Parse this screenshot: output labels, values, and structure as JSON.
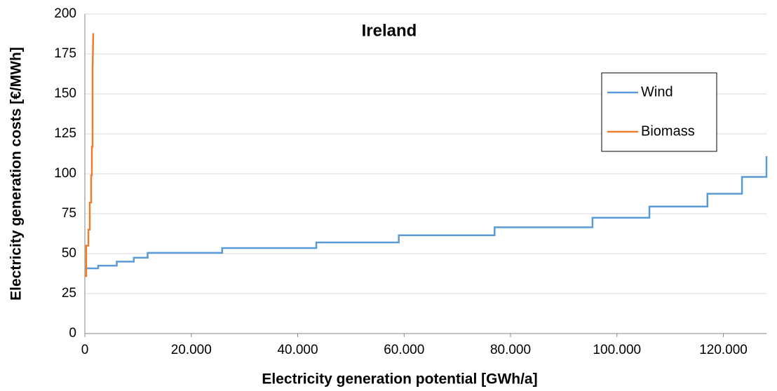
{
  "chart_data": {
    "type": "line",
    "title": "Ireland",
    "x_label": "Electricity generation potential [GWh/a]",
    "y_label": "Electricity generation costs [€/MWh]",
    "xlim": [
      0,
      128100
    ],
    "ylim": [
      0,
      200
    ],
    "xticks": [
      0,
      {
        "value": 20000,
        "label": "20.000"
      },
      {
        "value": 40000,
        "label": "40.000"
      },
      {
        "value": 60000,
        "label": "60.000"
      },
      {
        "value": 80000,
        "label": "80.000"
      },
      {
        "value": 100000,
        "label": "100.000"
      },
      {
        "value": 120000,
        "label": "120.000"
      }
    ],
    "yticks": [
      0,
      25,
      50,
      75,
      100,
      125,
      150,
      175,
      200
    ],
    "grid": true,
    "legend": "upper right",
    "series": [
      {
        "name": "Wind",
        "color": "#5b9bd5",
        "x": [
          0,
          2500,
          2500,
          6000,
          6000,
          9200,
          9200,
          11800,
          11800,
          25800,
          25800,
          43500,
          43500,
          59000,
          59000,
          77000,
          77000,
          95400,
          95400,
          106100,
          106100,
          117000,
          117000,
          123500,
          123500,
          128100,
          128100
        ],
        "values": [
          40.8,
          40.8,
          42.5,
          42.5,
          45,
          45,
          47.5,
          47.5,
          50.5,
          50.5,
          53.5,
          53.5,
          57,
          57,
          61.5,
          61.5,
          66.5,
          66.5,
          72.5,
          72.5,
          79.5,
          79.5,
          87.5,
          87.5,
          98,
          98,
          111
        ]
      },
      {
        "name": "Biomass",
        "color": "#ed7d31",
        "x": [
          0,
          260,
          260,
          660,
          660,
          920,
          920,
          1190,
          1190,
          1320,
          1320,
          1450,
          1450,
          1580
        ],
        "values": [
          36,
          36,
          55,
          55,
          65,
          65,
          82,
          82,
          99,
          99,
          117,
          117,
          165,
          188
        ]
      }
    ]
  }
}
